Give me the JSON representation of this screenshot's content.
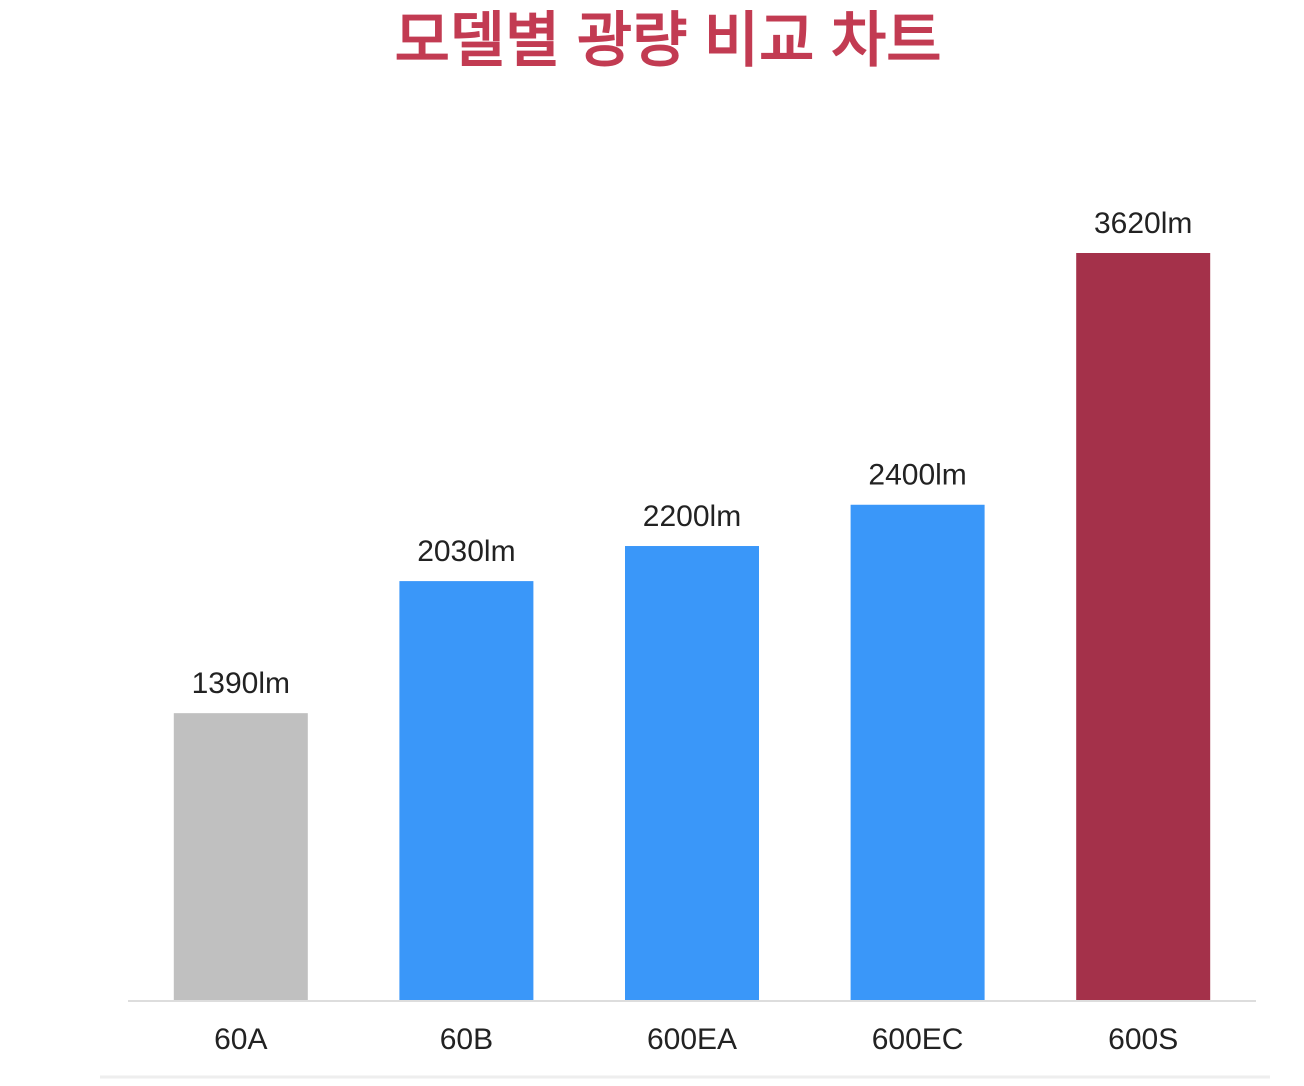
{
  "chart_data": {
    "type": "bar",
    "title": "모델별 광량 비교 차트",
    "categories": [
      "60A",
      "60B",
      "600EA",
      "600EC",
      "600S"
    ],
    "values": [
      1390,
      2030,
      2200,
      2400,
      3620
    ],
    "value_labels": [
      "1390lm",
      "2030lm",
      "2200lm",
      "2400lm",
      "3620lm"
    ],
    "colors": [
      "#c0c0c0",
      "#3a97f9",
      "#3a97f9",
      "#3a97f9",
      "#a4314a"
    ]
  }
}
